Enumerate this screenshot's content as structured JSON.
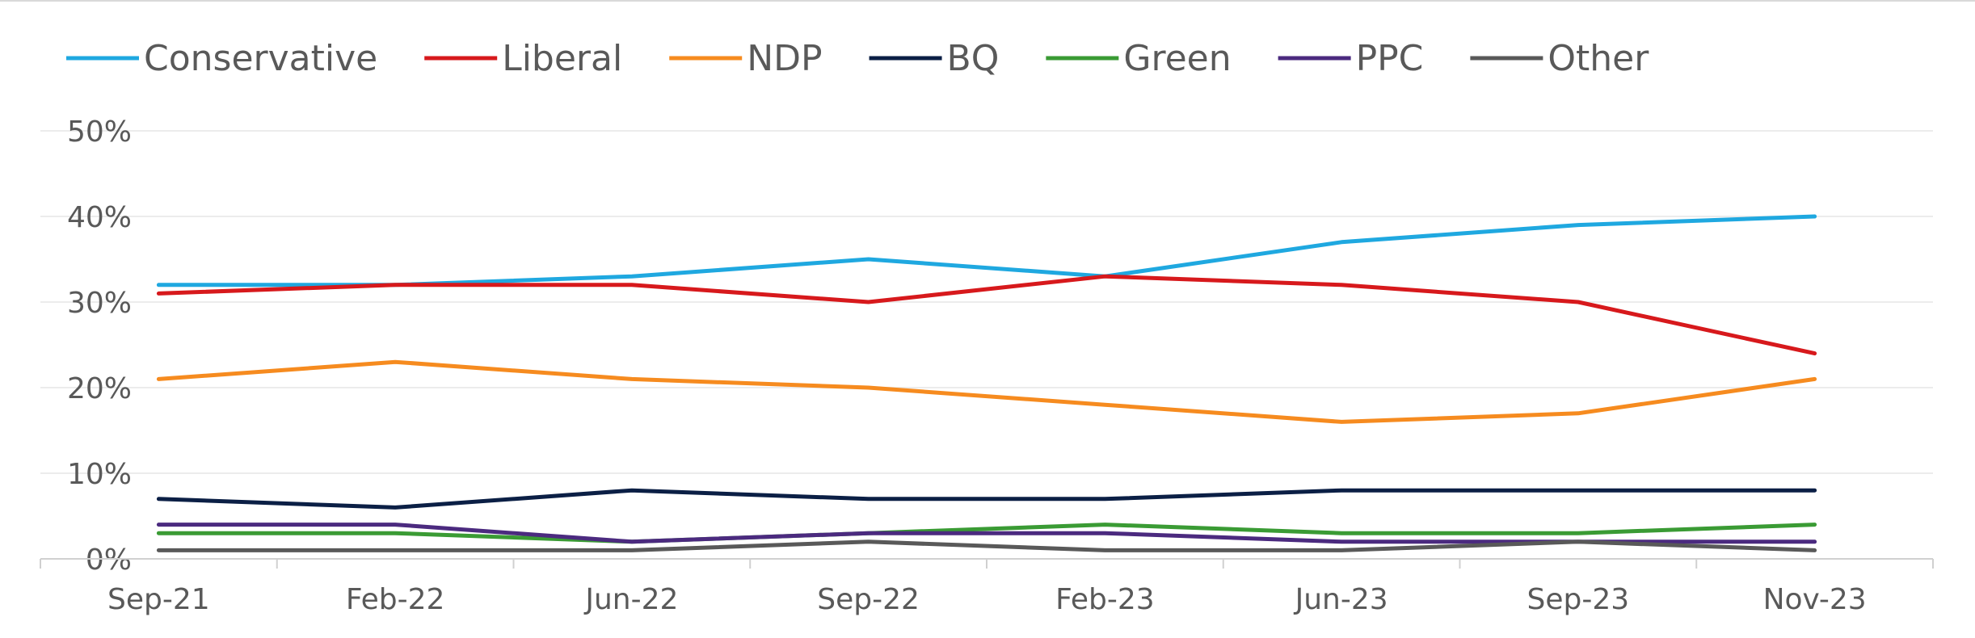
{
  "chart_data": {
    "type": "line",
    "title": "",
    "xlabel": "",
    "ylabel": "",
    "categories": [
      "Sep-21",
      "Feb-22",
      "Jun-22",
      "Sep-22",
      "Feb-23",
      "Jun-23",
      "Sep-23",
      "Nov-23"
    ],
    "yticks": [
      "0%",
      "10%",
      "20%",
      "30%",
      "40%",
      "50%"
    ],
    "ylim": [
      0,
      50
    ],
    "grid": true,
    "legend_position": "top",
    "series": [
      {
        "name": "Conservative",
        "color": "#1fa8e0",
        "values": [
          32,
          32,
          33,
          35,
          33,
          37,
          39,
          40
        ]
      },
      {
        "name": "Liberal",
        "color": "#d7191c",
        "values": [
          31,
          32,
          32,
          30,
          33,
          32,
          30,
          24
        ]
      },
      {
        "name": "NDP",
        "color": "#f68b1f",
        "values": [
          21,
          23,
          21,
          20,
          18,
          16,
          17,
          21
        ]
      },
      {
        "name": "BQ",
        "color": "#0b1f45",
        "values": [
          7,
          6,
          8,
          7,
          7,
          8,
          8,
          8
        ]
      },
      {
        "name": "Green",
        "color": "#3a9b34",
        "values": [
          3,
          3,
          2,
          3,
          4,
          3,
          3,
          4
        ]
      },
      {
        "name": "PPC",
        "color": "#4b2a7f",
        "values": [
          4,
          4,
          2,
          3,
          3,
          2,
          2,
          2
        ]
      },
      {
        "name": "Other",
        "color": "#595959",
        "values": [
          1,
          1,
          1,
          2,
          1,
          1,
          2,
          1
        ]
      }
    ]
  }
}
